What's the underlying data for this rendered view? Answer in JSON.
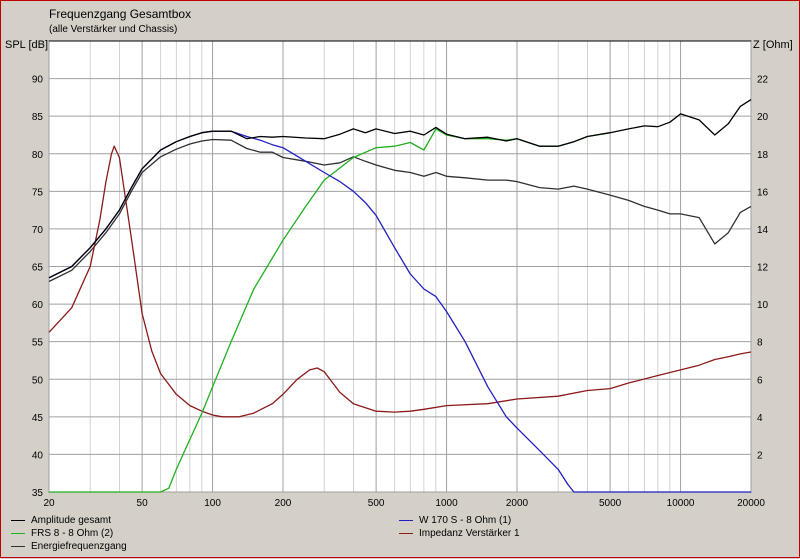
{
  "chart_data": {
    "type": "line",
    "title": "Frequenzgang Gesamtbox",
    "subtitle": "(alle Verstärker und Chassis)",
    "ylabel": "SPL [dB]",
    "ylabel_right": "Z [Ohm]",
    "xscale": "log",
    "xlim": [
      20,
      20000
    ],
    "ylim": [
      35,
      95
    ],
    "ylim_right": [
      0,
      24
    ],
    "x_ticks": [
      20,
      50,
      100,
      200,
      500,
      1000,
      2000,
      5000,
      10000,
      20000
    ],
    "y_ticks": [
      35,
      40,
      45,
      50,
      55,
      60,
      65,
      70,
      75,
      80,
      85,
      90
    ],
    "y_right_ticks": [
      2,
      4,
      6,
      8,
      10,
      12,
      14,
      16,
      18,
      20,
      22
    ],
    "grid": true,
    "legend_position": "bottom",
    "series": [
      {
        "name": "Amplitude gesamt",
        "color": "#000000",
        "axis": "left",
        "x": [
          20,
          25,
          30,
          35,
          40,
          45,
          50,
          60,
          70,
          80,
          90,
          100,
          120,
          140,
          160,
          180,
          200,
          250,
          300,
          350,
          400,
          450,
          500,
          600,
          700,
          800,
          900,
          1000,
          1200,
          1500,
          1800,
          2000,
          2500,
          3000,
          3500,
          4000,
          5000,
          6000,
          7000,
          8000,
          9000,
          10000,
          12000,
          14000,
          16000,
          18000,
          20000
        ],
        "y": [
          63.5,
          65,
          67.5,
          70,
          72.5,
          75.5,
          78,
          80.5,
          81.6,
          82.3,
          82.8,
          83,
          83,
          82,
          82.3,
          82.2,
          82.3,
          82.1,
          82,
          82.6,
          83.3,
          82.8,
          83.3,
          82.7,
          83,
          82.5,
          83.5,
          82.6,
          82,
          82.2,
          81.7,
          82,
          81,
          81,
          81.6,
          82.3,
          82.8,
          83.3,
          83.7,
          83.6,
          84.2,
          85.3,
          84.5,
          82.5,
          84,
          86.3,
          87.2
        ]
      },
      {
        "name": "W 170 S - 8 Ohm (1)",
        "color": "#2020c0",
        "axis": "left",
        "x": [
          20,
          25,
          30,
          35,
          40,
          45,
          50,
          60,
          70,
          80,
          90,
          100,
          120,
          140,
          160,
          180,
          200,
          250,
          300,
          350,
          400,
          450,
          500,
          600,
          700,
          800,
          900,
          1000,
          1200,
          1500,
          1800,
          2000,
          2500,
          3000,
          3300,
          3500,
          4000,
          5000,
          10000,
          20000
        ],
        "y": [
          63.5,
          65,
          67.5,
          70,
          72.5,
          75.5,
          78,
          80.5,
          81.6,
          82.3,
          82.8,
          83,
          83,
          82.3,
          81.8,
          81.2,
          80.8,
          79,
          77.5,
          76.3,
          75,
          73.5,
          71.8,
          67.5,
          64,
          62,
          61,
          59,
          55,
          49,
          45,
          43.5,
          40.5,
          38,
          36,
          35,
          35,
          35,
          35,
          35
        ]
      },
      {
        "name": "FRS 8 - 8 Ohm (2)",
        "color": "#20b020",
        "axis": "left",
        "x": [
          20,
          50,
          60,
          65,
          70,
          80,
          90,
          100,
          120,
          150,
          200,
          250,
          300,
          400,
          500,
          600,
          700,
          800,
          900,
          1000,
          1200,
          1500,
          1800,
          2000,
          2500,
          3000,
          3500,
          4000,
          5000
        ],
        "y": [
          35,
          35,
          35,
          35.5,
          38,
          42,
          45.5,
          49,
          55,
          62,
          68.5,
          73,
          76.5,
          79.5,
          80.8,
          81,
          81.5,
          80.5,
          83.3,
          82.5,
          82,
          82,
          81.8,
          82,
          81,
          81,
          81.6,
          82.3,
          82.8
        ]
      },
      {
        "name": "Impedanz Verstärker 1",
        "color": "#8b1a1a",
        "axis": "right",
        "x": [
          20,
          25,
          30,
          33,
          35,
          37,
          38,
          40,
          45,
          50,
          55,
          60,
          70,
          80,
          90,
          100,
          110,
          120,
          130,
          150,
          180,
          200,
          230,
          260,
          280,
          300,
          350,
          400,
          500,
          600,
          700,
          800,
          1000,
          1500,
          2000,
          3000,
          4000,
          5000,
          6000,
          8000,
          10000,
          12000,
          14000,
          16000,
          18000,
          20000
        ],
        "y": [
          8.5,
          9.8,
          12,
          14.5,
          16.5,
          18,
          18.4,
          17.8,
          13.5,
          9.5,
          7.5,
          6.3,
          5.2,
          4.6,
          4.3,
          4.1,
          4,
          4,
          4,
          4.2,
          4.7,
          5.2,
          6,
          6.5,
          6.6,
          6.4,
          5.3,
          4.7,
          4.3,
          4.25,
          4.3,
          4.4,
          4.6,
          4.7,
          4.95,
          5.1,
          5.4,
          5.5,
          5.8,
          6.2,
          6.5,
          6.75,
          7.05,
          7.2,
          7.35,
          7.45
        ]
      },
      {
        "name": "Energiefrequenzgang",
        "color": "#303030",
        "axis": "left",
        "x": [
          20,
          25,
          30,
          35,
          40,
          45,
          50,
          60,
          70,
          80,
          90,
          100,
          120,
          140,
          160,
          180,
          200,
          250,
          300,
          350,
          400,
          450,
          500,
          600,
          700,
          800,
          900,
          1000,
          1200,
          1500,
          1800,
          2000,
          2500,
          3000,
          3500,
          4000,
          5000,
          6000,
          7000,
          8000,
          9000,
          10000,
          12000,
          14000,
          16000,
          18000,
          20000
        ],
        "y": [
          63,
          64.5,
          67,
          69.5,
          72,
          75,
          77.5,
          79.6,
          80.6,
          81.3,
          81.7,
          81.9,
          81.8,
          80.7,
          80.2,
          80.2,
          79.5,
          79,
          78.5,
          78.8,
          79.6,
          79,
          78.5,
          77.8,
          77.5,
          77,
          77.5,
          77,
          76.8,
          76.5,
          76.5,
          76.3,
          75.5,
          75.3,
          75.7,
          75.3,
          74.5,
          73.8,
          73,
          72.5,
          72,
          72,
          71.5,
          68,
          69.5,
          72.2,
          73
        ]
      }
    ]
  }
}
